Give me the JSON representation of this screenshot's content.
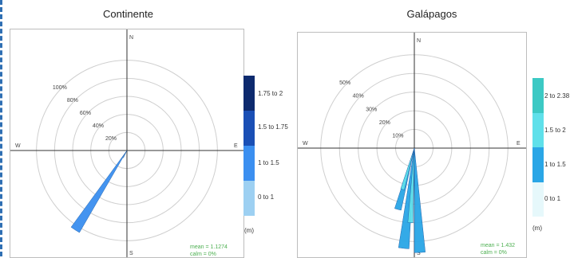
{
  "chart_data": [
    {
      "type": "windrose",
      "title": "Continente",
      "compass": {
        "north": "N",
        "east": "E",
        "south": "S",
        "west": "W"
      },
      "ring_labels": [
        "100%",
        "80%",
        "60%",
        "40%",
        "20%"
      ],
      "ring_values": [
        100,
        80,
        60,
        40,
        20
      ],
      "rmax": 120,
      "unit": "(m)",
      "legend": [
        {
          "label": "1.75 to 2",
          "color": "#0d2a6e"
        },
        {
          "label": "1.5 to 1.75",
          "color": "#1a4fb5"
        },
        {
          "label": "1 to 1.5",
          "color": "#3b8ff0"
        },
        {
          "label": "0 to 1",
          "color": "#9dd0f2"
        }
      ],
      "stats": [
        "mean = 1.1274",
        "calm = 0%"
      ],
      "petals": [
        {
          "direction_deg": 213,
          "width_deg": 6,
          "value": 105,
          "color": "#3b8ff0"
        },
        {
          "direction_deg": 208,
          "width_deg": 5,
          "value": 9,
          "color": "#9dd0f2"
        }
      ]
    },
    {
      "type": "windrose",
      "title": "Galápagos",
      "compass": {
        "north": "N",
        "east": "E",
        "south": "S",
        "west": "W"
      },
      "ring_labels": [
        "50%",
        "40%",
        "30%",
        "20%",
        "10%"
      ],
      "ring_values": [
        50,
        40,
        30,
        20,
        10
      ],
      "rmax": 58,
      "unit": "(m)",
      "legend": [
        {
          "label": "2 to 2.38",
          "color": "#3cc9c4"
        },
        {
          "label": "1.5 to 2",
          "color": "#5fe0ea"
        },
        {
          "label": "1 to 1.5",
          "color": "#2aa6e6"
        },
        {
          "label": "0 to 1",
          "color": "#e6f8fb"
        }
      ],
      "stats": [
        "mean = 1.432",
        "calm = 0%"
      ],
      "petals": [
        {
          "direction_deg": 195,
          "width_deg": 6,
          "value": 34,
          "color": "#2aa6e6"
        },
        {
          "direction_deg": 186,
          "width_deg": 6,
          "value": 54,
          "color": "#2aa6e6"
        },
        {
          "direction_deg": 177,
          "width_deg": 6,
          "value": 56,
          "color": "#2aa6e6"
        },
        {
          "direction_deg": 196,
          "width_deg": 5,
          "value": 23,
          "color": "#5fe0ea"
        },
        {
          "direction_deg": 183,
          "width_deg": 4,
          "value": 40,
          "color": "#5fe0ea"
        }
      ]
    }
  ]
}
